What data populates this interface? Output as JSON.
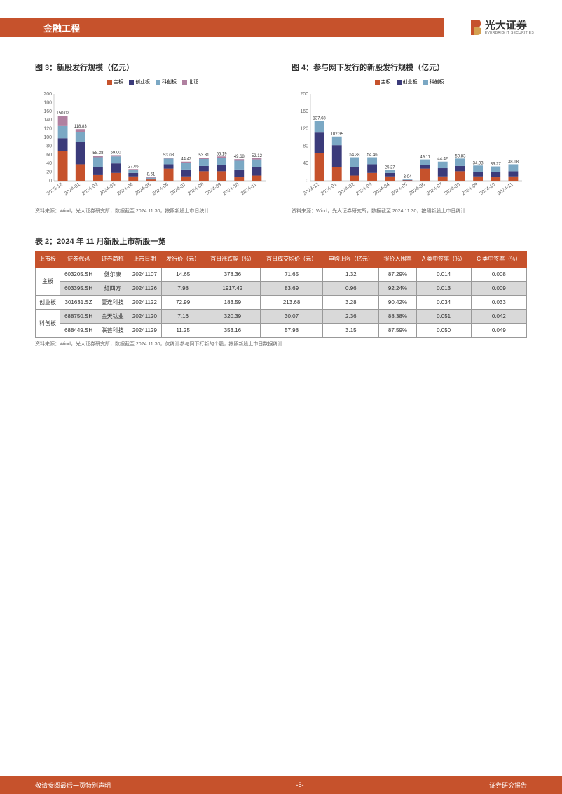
{
  "header": {
    "title": "金融工程"
  },
  "logo": {
    "name": "光大证券",
    "sub": "EVERBRIGHT SECURITIES"
  },
  "chart3": {
    "title": "图 3：新股发行规模（亿元）",
    "type": "stacked-bar",
    "legend": [
      {
        "label": "主板",
        "color": "#c6522c"
      },
      {
        "label": "创业板",
        "color": "#3b3b7a"
      },
      {
        "label": "科创板",
        "color": "#7ba8c4"
      },
      {
        "label": "北证",
        "color": "#b080a0"
      }
    ],
    "categories": [
      "2023-12",
      "2024-01",
      "2024-02",
      "2024-03",
      "2024-04",
      "2024-05",
      "2024-06",
      "2024-07",
      "2024-08",
      "2024-09",
      "2024-10",
      "2024-11"
    ],
    "totals": [
      150.02,
      118.83,
      58.38,
      59.0,
      27.05,
      8.61,
      53.08,
      44.42,
      53.31,
      56.19,
      49.68,
      52.12
    ],
    "stacks": [
      [
        68,
        30,
        28,
        24
      ],
      [
        38,
        52,
        22,
        7
      ],
      [
        13,
        18,
        23,
        4
      ],
      [
        18,
        22,
        16,
        3
      ],
      [
        10,
        8,
        7,
        2
      ],
      [
        3,
        2,
        2,
        1.6
      ],
      [
        28,
        10,
        13,
        2
      ],
      [
        10,
        16,
        15,
        3
      ],
      [
        22,
        12,
        16,
        3
      ],
      [
        22,
        14,
        17,
        3
      ],
      [
        8,
        18,
        20,
        3.7
      ],
      [
        12,
        20,
        17,
        3
      ]
    ],
    "ylim": [
      0,
      200
    ],
    "ytick_step": 20,
    "background_color": "#ffffff",
    "source": "资料来源：Wind，光大证券研究所，数据截至 2024.11.30，按照新股上市日统计"
  },
  "chart4": {
    "title": "图 4：参与网下发行的新股发行规模（亿元）",
    "type": "stacked-bar",
    "legend": [
      {
        "label": "主板",
        "color": "#c6522c"
      },
      {
        "label": "创业板",
        "color": "#3b3b7a"
      },
      {
        "label": "科创板",
        "color": "#7ba8c4"
      }
    ],
    "categories": [
      "2023-12",
      "2024-01",
      "2024-02",
      "2024-03",
      "2024-04",
      "2024-05",
      "2024-06",
      "2024-07",
      "2024-08",
      "2024-09",
      "2024-10",
      "2024-11"
    ],
    "totals": [
      137.68,
      102.35,
      54.38,
      54.46,
      25.27,
      3.04,
      49.11,
      44.42,
      50.83,
      34.93,
      33.27,
      38.18
    ],
    "stacks": [
      [
        63,
        48,
        27
      ],
      [
        32,
        50,
        20
      ],
      [
        12,
        20,
        22
      ],
      [
        18,
        20,
        16
      ],
      [
        10,
        8,
        7
      ],
      [
        1,
        1,
        1
      ],
      [
        28,
        8,
        13
      ],
      [
        10,
        19,
        15
      ],
      [
        22,
        12,
        17
      ],
      [
        10,
        10,
        15
      ],
      [
        8,
        12,
        13
      ],
      [
        10,
        12,
        16
      ]
    ],
    "ylim": [
      0,
      200
    ],
    "ytick_step": 40,
    "background_color": "#ffffff",
    "source": "资料来源：Wind，光大证券研究所，数据截至 2024.11.30，按照新股上市日统计"
  },
  "table2": {
    "title": "表 2：2024 年 11 月新股上市新股一览",
    "columns": [
      "上市板",
      "证券代码",
      "证券简称",
      "上市日期",
      "发行价（元）",
      "首日涨跌幅（%）",
      "首日成交均价（元）",
      "申购上限（亿元）",
      "报价入围率",
      "A 类中签率（%）",
      "C 类中签率（%）"
    ],
    "rows": [
      {
        "board": "主板",
        "span": 2,
        "cells": [
          "603205.SH",
          "健尔康",
          "20241107",
          "14.65",
          "378.36",
          "71.65",
          "1.32",
          "87.29%",
          "0.014",
          "0.008"
        ],
        "cls": "odd"
      },
      {
        "board": null,
        "cells": [
          "603395.SH",
          "红四方",
          "20241126",
          "7.98",
          "1917.42",
          "83.69",
          "0.96",
          "92.24%",
          "0.013",
          "0.009"
        ],
        "cls": "even"
      },
      {
        "board": "创业板",
        "span": 1,
        "cells": [
          "301631.SZ",
          "壹连科技",
          "20241122",
          "72.99",
          "183.59",
          "213.68",
          "3.28",
          "90.42%",
          "0.034",
          "0.033"
        ],
        "cls": "odd"
      },
      {
        "board": "科创板",
        "span": 2,
        "cells": [
          "688750.SH",
          "金天钛业",
          "20241120",
          "7.16",
          "320.39",
          "30.07",
          "2.36",
          "88.38%",
          "0.051",
          "0.042"
        ],
        "cls": "even"
      },
      {
        "board": null,
        "cells": [
          "688449.SH",
          "联芸科技",
          "20241129",
          "11.25",
          "353.16",
          "57.98",
          "3.15",
          "87.59%",
          "0.050",
          "0.049"
        ],
        "cls": "odd"
      }
    ],
    "source": "资料来源：Wind，光大证券研究所，数据截至 2024.11.30，仅统计参与网下打新的个股，按照新股上市日数据统计"
  },
  "footer": {
    "left": "敬请参阅最后一页特别声明",
    "center": "-5-",
    "right": "证券研究报告"
  }
}
